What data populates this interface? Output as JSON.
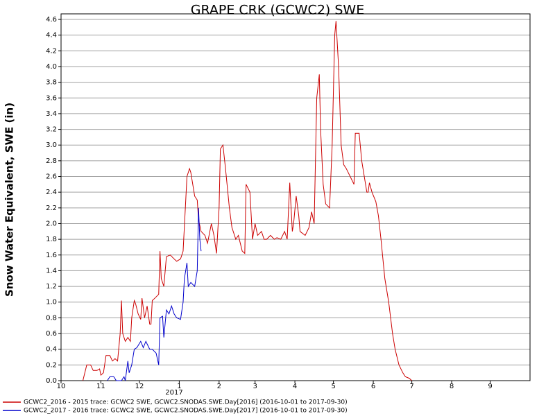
{
  "chart_data": {
    "type": "line",
    "title": "GRAPE CRK (GCWC2) SWE",
    "y_label": "Snow Water Equivalent, SWE (in)",
    "annotation": "2017",
    "xlim": [
      0,
      365
    ],
    "xticks": [
      {
        "value": 0,
        "label": "10"
      },
      {
        "value": 31,
        "label": "11"
      },
      {
        "value": 61,
        "label": "12"
      },
      {
        "value": 92,
        "label": "1"
      },
      {
        "value": 123,
        "label": "2"
      },
      {
        "value": 151,
        "label": "3"
      },
      {
        "value": 182,
        "label": "4"
      },
      {
        "value": 212,
        "label": "5"
      },
      {
        "value": 243,
        "label": "6"
      },
      {
        "value": 273,
        "label": "7"
      },
      {
        "value": 304,
        "label": "8"
      },
      {
        "value": 334,
        "label": "9"
      }
    ],
    "ylim": [
      0,
      4.6
    ],
    "yticks": [
      {
        "value": 0,
        "label": "0.0"
      },
      0.2,
      0.4,
      0.6,
      0.8,
      {
        "value": 1,
        "label": "1.0"
      },
      1.2,
      1.4,
      1.6,
      1.8,
      {
        "value": 2,
        "label": "2.0"
      },
      2.2,
      2.4,
      2.6,
      2.8,
      {
        "value": 3,
        "label": "3.0"
      },
      3.2,
      3.4,
      3.6,
      3.8,
      {
        "value": 4,
        "label": "4.0"
      },
      4.2,
      4.4,
      4.6
    ],
    "grid": true,
    "series": [
      {
        "name": "GCWC2_2016 - 2015 trace: GCWC2 SWE, GCWC2.SNODAS.SWE.Day[2016] (2016-10-01 to 2017-09-30)",
        "color": "#cc0000",
        "x": [
          17,
          20,
          23,
          25,
          28,
          30,
          31,
          33,
          35,
          38,
          40,
          42,
          44,
          46,
          47,
          48,
          50,
          52,
          54,
          55,
          57,
          58,
          60,
          62,
          63,
          65,
          67,
          69,
          70,
          71,
          73,
          76,
          77,
          78,
          80,
          82,
          85,
          88,
          90,
          93,
          95,
          98,
          100,
          101,
          104,
          106,
          107,
          109,
          112,
          114,
          117,
          119,
          121,
          123,
          124,
          126,
          128,
          131,
          133,
          136,
          138,
          141,
          143,
          144,
          147,
          149,
          151,
          153,
          156,
          158,
          160,
          163,
          166,
          168,
          171,
          174,
          176,
          178,
          180,
          181,
          183,
          185,
          186,
          190,
          193,
          195,
          197,
          199,
          201,
          202,
          204,
          206,
          209,
          211,
          213,
          214,
          216,
          218,
          220,
          222,
          225,
          228,
          229,
          232,
          234,
          238,
          239,
          240,
          242,
          245,
          247,
          249,
          252,
          255,
          258,
          260,
          263,
          266,
          268,
          271,
          273
        ],
        "values": [
          0,
          0.2,
          0.2,
          0.13,
          0.13,
          0.15,
          0.07,
          0.1,
          0.32,
          0.32,
          0.25,
          0.28,
          0.25,
          0.6,
          1.02,
          0.6,
          0.5,
          0.55,
          0.5,
          0.8,
          1.02,
          0.98,
          0.85,
          0.78,
          1.05,
          0.8,
          0.95,
          0.72,
          0.72,
          1.02,
          1.05,
          1.1,
          1.65,
          1.3,
          1.2,
          1.58,
          1.6,
          1.55,
          1.52,
          1.55,
          1.65,
          2.6,
          2.7,
          2.65,
          2.35,
          2.3,
          2.05,
          1.9,
          1.85,
          1.75,
          2.0,
          1.85,
          1.62,
          2.2,
          2.95,
          3.0,
          2.7,
          2.2,
          1.95,
          1.8,
          1.85,
          1.65,
          1.62,
          2.5,
          2.4,
          1.8,
          2.0,
          1.85,
          1.9,
          1.8,
          1.8,
          1.85,
          1.8,
          1.82,
          1.8,
          1.9,
          1.8,
          2.52,
          1.9,
          2.0,
          2.35,
          2.1,
          1.9,
          1.85,
          1.95,
          2.15,
          2.0,
          3.6,
          3.9,
          3.2,
          2.5,
          2.25,
          2.2,
          3.0,
          4.4,
          4.58,
          4.0,
          3.0,
          2.75,
          2.7,
          2.6,
          2.5,
          3.15,
          3.15,
          2.8,
          2.4,
          2.4,
          2.52,
          2.4,
          2.28,
          2.1,
          1.8,
          1.3,
          1.0,
          0.6,
          0.4,
          0.2,
          0.1,
          0.05,
          0.03,
          0
        ]
      },
      {
        "name": "GCWC2_2017 - 2016 trace: GCWC2 SWE, GCWC2.SNODAS.SWE.Day[2017] (2016-10-01 to 2017-09-30)",
        "color": "#0000cc",
        "x": [
          36,
          38,
          41,
          43,
          47,
          49,
          50,
          52,
          53,
          55,
          57,
          59,
          62,
          64,
          66,
          69,
          71,
          74,
          76,
          77,
          79,
          80,
          82,
          84,
          86,
          88,
          90,
          93,
          95,
          96,
          98,
          99,
          101,
          104,
          106,
          107,
          108,
          109
        ],
        "values": [
          0,
          0.05,
          0.05,
          0,
          0,
          0.05,
          0,
          0.25,
          0.1,
          0.2,
          0.4,
          0.42,
          0.5,
          0.42,
          0.5,
          0.4,
          0.4,
          0.35,
          0.2,
          0.8,
          0.82,
          0.55,
          0.9,
          0.85,
          0.95,
          0.85,
          0.8,
          0.78,
          1.0,
          1.3,
          1.5,
          1.2,
          1.25,
          1.2,
          1.4,
          2.2,
          1.8,
          1.65
        ]
      }
    ]
  }
}
